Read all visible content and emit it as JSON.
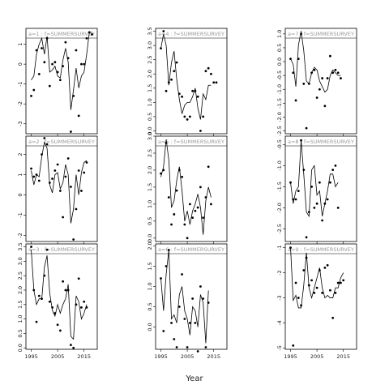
{
  "x_axis": {
    "title": "Year",
    "ticks": [
      1995,
      2005,
      2015
    ],
    "range": [
      1993,
      2020
    ]
  },
  "colors": {
    "points": "#000000",
    "line": "#000000",
    "panel_label": "#999999"
  },
  "chart_data": [
    {
      "type": "scatter",
      "panel": "a=1 : f=SUMMERSURVEY",
      "ylim": [
        -3.5,
        1.8
      ],
      "yticks": [
        "-3",
        "-2",
        "-1",
        "0",
        "1"
      ],
      "ytick_values": [
        -3,
        -2,
        -1,
        0,
        1
      ],
      "x": [
        1995,
        1996,
        1997,
        1998,
        1999,
        2000,
        2001,
        2002,
        2003,
        2004,
        2005,
        2006,
        2007,
        2008,
        2009,
        2010,
        2011,
        2012,
        2013,
        2014,
        2015,
        2016,
        2017,
        2018
      ],
      "points": [
        -1.6,
        -1.3,
        0.7,
        -0.5,
        0.8,
        0.1,
        1.3,
        -1.1,
        0.0,
        0.1,
        -0.4,
        -0.8,
        -0.1,
        1.1,
        0.3,
        -3.4,
        -1.6,
        0.7,
        -2.6,
        0.0,
        0.0,
        1.3,
        1.6,
        1.5
      ],
      "fit": [
        -0.8,
        -0.6,
        0.5,
        1.0,
        1.3,
        0.5,
        1.4,
        -0.4,
        -0.3,
        -0.1,
        -0.6,
        -0.7,
        0.2,
        0.8,
        0.1,
        -2.3,
        -1.3,
        -0.2,
        -1.2,
        -0.6,
        -0.4,
        0.5,
        1.6,
        1.6
      ]
    },
    {
      "type": "scatter",
      "panel": "a=4 : f=SUMMERSURVEY",
      "ylim": [
        -0.1,
        3.6
      ],
      "yticks": [
        "0.0",
        "0.5",
        "1.0",
        "1.5",
        "2.0",
        "2.5",
        "3.0",
        "3.5"
      ],
      "ytick_values": [
        0,
        0.5,
        1,
        1.5,
        2,
        2.5,
        3,
        3.5
      ],
      "x": [
        1995,
        1996,
        1997,
        1998,
        1999,
        2000,
        2001,
        2002,
        2003,
        2004,
        2005,
        2006,
        2007,
        2008,
        2009,
        2010,
        2011,
        2012,
        2013,
        2014,
        2015,
        2016,
        2017,
        2018
      ],
      "points": [
        2.9,
        3.5,
        1.4,
        1.7,
        1.8,
        2.1,
        2.4,
        1.3,
        1.2,
        0.5,
        0.4,
        0.5,
        1.4,
        1.4,
        1.2,
        0.0,
        0.5,
        2.1,
        2.2,
        2.0,
        1.7,
        1.7,
        null,
        null
      ],
      "fit": [
        2.9,
        3.4,
        3.0,
        1.6,
        2.4,
        2.8,
        1.8,
        1.1,
        0.6,
        0.9,
        1.0,
        1.0,
        1.2,
        1.5,
        0.8,
        0.4,
        1.3,
        1.1,
        1.6,
        1.6,
        null,
        null,
        null,
        null
      ]
    },
    {
      "type": "scatter",
      "panel": "a=7 : f=SUMMERSURVEY",
      "ylim": [
        -2.6,
        1.2
      ],
      "yticks": [
        "-2.5",
        "-2.0",
        "-1.5",
        "-1.0",
        "-0.5",
        "0.0",
        "0.5",
        "1.0"
      ],
      "ytick_values": [
        -2.5,
        -2.0,
        -1.5,
        -1.0,
        -0.5,
        0.0,
        0.5,
        1.0
      ],
      "x": [
        1995,
        1996,
        1997,
        1998,
        1999,
        2000,
        2001,
        2002,
        2003,
        2004,
        2005,
        2006,
        2007,
        2008,
        2009,
        2010,
        2011,
        2012,
        2013,
        2014,
        2015,
        2016,
        2017,
        2018
      ],
      "points": [
        0.1,
        -0.4,
        -1.4,
        0.1,
        1.0,
        -0.8,
        -2.4,
        -0.8,
        -0.4,
        -0.3,
        -1.3,
        -1.0,
        -0.6,
        -1.6,
        -0.6,
        0.2,
        -0.4,
        -0.3,
        -0.4,
        -0.6,
        null,
        null,
        null,
        null
      ],
      "fit": [
        0.1,
        -0.1,
        -0.9,
        0.6,
        1.1,
        0.4,
        -0.7,
        -0.8,
        -0.4,
        -0.2,
        -0.3,
        -0.7,
        -0.9,
        -1.1,
        -1.0,
        -0.5,
        -0.3,
        -0.4,
        -0.5,
        -0.5,
        null,
        null,
        null,
        null
      ]
    },
    {
      "type": "scatter",
      "panel": "a=2 : f=SUMMERSURVEY",
      "ylim": [
        -2.3,
        2.9
      ],
      "yticks": [
        "-2",
        "-1",
        "0",
        "1",
        "2"
      ],
      "ytick_values": [
        -2,
        -1,
        0,
        1,
        2
      ],
      "x": [
        1995,
        1996,
        1997,
        1998,
        1999,
        2000,
        2001,
        2002,
        2003,
        2004,
        2005,
        2006,
        2007,
        2008,
        2009,
        2010,
        2011,
        2012,
        2013,
        2014,
        2015,
        2016,
        2017,
        2018
      ],
      "points": [
        1.3,
        0.9,
        1.0,
        0.7,
        2.0,
        2.8,
        2.5,
        0.6,
        0.8,
        1.2,
        1.5,
        0.2,
        -1.1,
        0.9,
        1.8,
        0.4,
        -2.2,
        -0.7,
        1.2,
        0.2,
        1.1,
        1.6,
        null,
        null
      ],
      "fit": [
        1.2,
        0.5,
        1.0,
        0.9,
        1.9,
        2.6,
        2.3,
        0.5,
        0.1,
        1.0,
        1.1,
        0.3,
        0.6,
        1.5,
        1.0,
        -1.4,
        -0.7,
        1.0,
        0.0,
        1.1,
        1.6,
        1.7,
        null,
        null
      ]
    },
    {
      "type": "scatter",
      "panel": "a=5 : f=SUMMERSURVEY",
      "ylim": [
        -0.1,
        3.0
      ],
      "yticks": [
        "0.0",
        "0.5",
        "1.0",
        "1.5",
        "2.0",
        "2.5",
        "3.0"
      ],
      "ytick_values": [
        0,
        0.5,
        1,
        1.5,
        2,
        2.5,
        3
      ],
      "x": [
        1995,
        1996,
        1997,
        1998,
        1999,
        2000,
        2001,
        2002,
        2003,
        2004,
        2005,
        2006,
        2007,
        2008,
        2009,
        2010,
        2011,
        2012,
        2013,
        2014,
        2015,
        2016,
        2017,
        2018
      ],
      "points": [
        1.9,
        2.0,
        2.8,
        1.2,
        0.4,
        0.7,
        1.4,
        2.0,
        1.8,
        0.4,
        0.0,
        1.0,
        0.6,
        0.8,
        0.9,
        1.5,
        0.6,
        1.2,
        2.1,
        1.0,
        null,
        null,
        null,
        null
      ],
      "fit": [
        1.8,
        2.1,
        2.9,
        2.3,
        0.9,
        1.1,
        1.7,
        2.1,
        1.4,
        0.5,
        0.8,
        0.4,
        0.8,
        1.0,
        1.3,
        0.9,
        0.1,
        1.1,
        1.5,
        1.2,
        null,
        null,
        null,
        null
      ]
    },
    {
      "type": "scatter",
      "panel": "a=8 : f=SUMMERSURVEY",
      "ylim": [
        -2.8,
        -0.3
      ],
      "yticks": [
        "-2.5",
        "-2.0",
        "-1.5",
        "-1.0",
        "-0.5"
      ],
      "ytick_values": [
        -2.5,
        -2.0,
        -1.5,
        -1.0,
        -0.5
      ],
      "x": [
        1995,
        1996,
        1997,
        1998,
        1999,
        2000,
        2001,
        2002,
        2003,
        2004,
        2005,
        2006,
        2007,
        2008,
        2009,
        2010,
        2011,
        2012,
        2013,
        2014,
        2015,
        2016,
        2017,
        2018
      ],
      "points": [
        -1.4,
        -1.8,
        -1.8,
        -1.6,
        -0.4,
        -1.1,
        -2.7,
        -2.1,
        -1.5,
        -2.0,
        -1.9,
        -1.4,
        -2.3,
        -1.9,
        -1.8,
        -1.4,
        -1.1,
        -1.0,
        -2.0,
        null,
        null,
        null,
        null,
        null
      ],
      "fit": [
        -1.4,
        -1.9,
        -1.6,
        -1.5,
        -0.4,
        -1.2,
        -2.1,
        -2.2,
        -1.1,
        -1.0,
        -1.7,
        -1.6,
        -2.2,
        -1.9,
        -1.6,
        -1.2,
        -1.2,
        -1.5,
        -1.4,
        null,
        null,
        null,
        null,
        null
      ]
    },
    {
      "type": "scatter",
      "panel": "a=3 : f=SUMMERSURVEY",
      "ylim": [
        -0.05,
        3.6
      ],
      "yticks": [
        "0.0",
        "0.5",
        "1.0",
        "1.5",
        "2.0",
        "2.5",
        "3.0",
        "3.5"
      ],
      "ytick_values": [
        0,
        0.5,
        1,
        1.5,
        2,
        2.5,
        3,
        3.5
      ],
      "x": [
        1995,
        1996,
        1997,
        1998,
        1999,
        2000,
        2001,
        2002,
        2003,
        2004,
        2005,
        2006,
        2007,
        2008,
        2009,
        2010,
        2011,
        2012,
        2013,
        2014,
        2015,
        2016,
        2017,
        2018
      ],
      "points": [
        3.5,
        2.0,
        0.9,
        1.8,
        1.7,
        2.5,
        3.4,
        1.6,
        1.4,
        1.2,
        0.8,
        0.6,
        2.3,
        2.0,
        2.0,
        0.1,
        0.0,
        1.5,
        2.4,
        1.4,
        1.6,
        1.4,
        null,
        null
      ],
      "fit": [
        3.4,
        2.0,
        1.5,
        1.7,
        1.7,
        2.8,
        3.2,
        1.9,
        1.3,
        1.1,
        1.5,
        1.2,
        1.5,
        1.7,
        2.2,
        0.4,
        0.3,
        1.8,
        1.6,
        1.0,
        1.2,
        1.5,
        null,
        null
      ]
    },
    {
      "type": "scatter",
      "panel": "a=6 : f=SUMMERSURVEY",
      "ylim": [
        -0.55,
        2.05
      ],
      "yticks": [
        "0.0",
        "0.5",
        "1.0",
        "1.5",
        "2.0"
      ],
      "ytick_values": [
        0,
        0.5,
        1,
        1.5,
        2
      ],
      "x": [
        1995,
        1996,
        1997,
        1998,
        1999,
        2000,
        2001,
        2002,
        2003,
        2004,
        2005,
        2006,
        2007,
        2008,
        2009,
        2010,
        2011,
        2012,
        2013,
        2014,
        2015,
        2016,
        2017,
        2018
      ],
      "points": [
        1.2,
        -0.1,
        1.5,
        1.9,
        0.1,
        -0.3,
        -0.5,
        0.5,
        1.3,
        0.2,
        -0.5,
        0.1,
        0.7,
        0.1,
        -0.6,
        1.0,
        0.7,
        -0.5,
        0.6,
        null,
        null,
        null,
        null,
        null
      ],
      "fit": [
        1.2,
        0.4,
        1.3,
        1.9,
        0.2,
        0.3,
        0.1,
        0.8,
        1.0,
        0.4,
        0.2,
        -0.2,
        0.5,
        0.4,
        0.0,
        0.8,
        0.6,
        -0.4,
        0.9,
        null,
        null,
        null,
        null,
        null
      ]
    },
    {
      "type": "scatter",
      "panel": "a=9 : f=SUMMERSURVEY",
      "ylim": [
        -5.05,
        -0.85
      ],
      "yticks": [
        "-5",
        "-4",
        "-3",
        "-2",
        "-1"
      ],
      "ytick_values": [
        -5,
        -4,
        -3,
        -2,
        -1
      ],
      "x": [
        1995,
        1996,
        1997,
        1998,
        1999,
        2000,
        2001,
        2002,
        2003,
        2004,
        2005,
        2006,
        2007,
        2008,
        2009,
        2010,
        2011,
        2012,
        2013,
        2014,
        2015,
        2016,
        2017,
        2018
      ],
      "points": [
        -1.0,
        -4.9,
        -2.4,
        -3.0,
        -3.3,
        -1.9,
        -1.4,
        -2.5,
        -2.3,
        -2.8,
        -2.6,
        -1.9,
        -2.8,
        -1.8,
        -1.7,
        -2.7,
        -3.8,
        -2.8,
        -2.4,
        -2.4,
        -2.3,
        null,
        null,
        null
      ],
      "fit": [
        -1.0,
        -3.1,
        -2.9,
        -3.4,
        -3.4,
        -2.5,
        -1.2,
        -2.6,
        -3.0,
        -2.6,
        -2.2,
        -1.8,
        -2.6,
        -3.0,
        -2.9,
        -3.0,
        -3.0,
        -2.6,
        -2.6,
        -2.2,
        -2.0,
        null,
        null,
        null
      ]
    }
  ]
}
